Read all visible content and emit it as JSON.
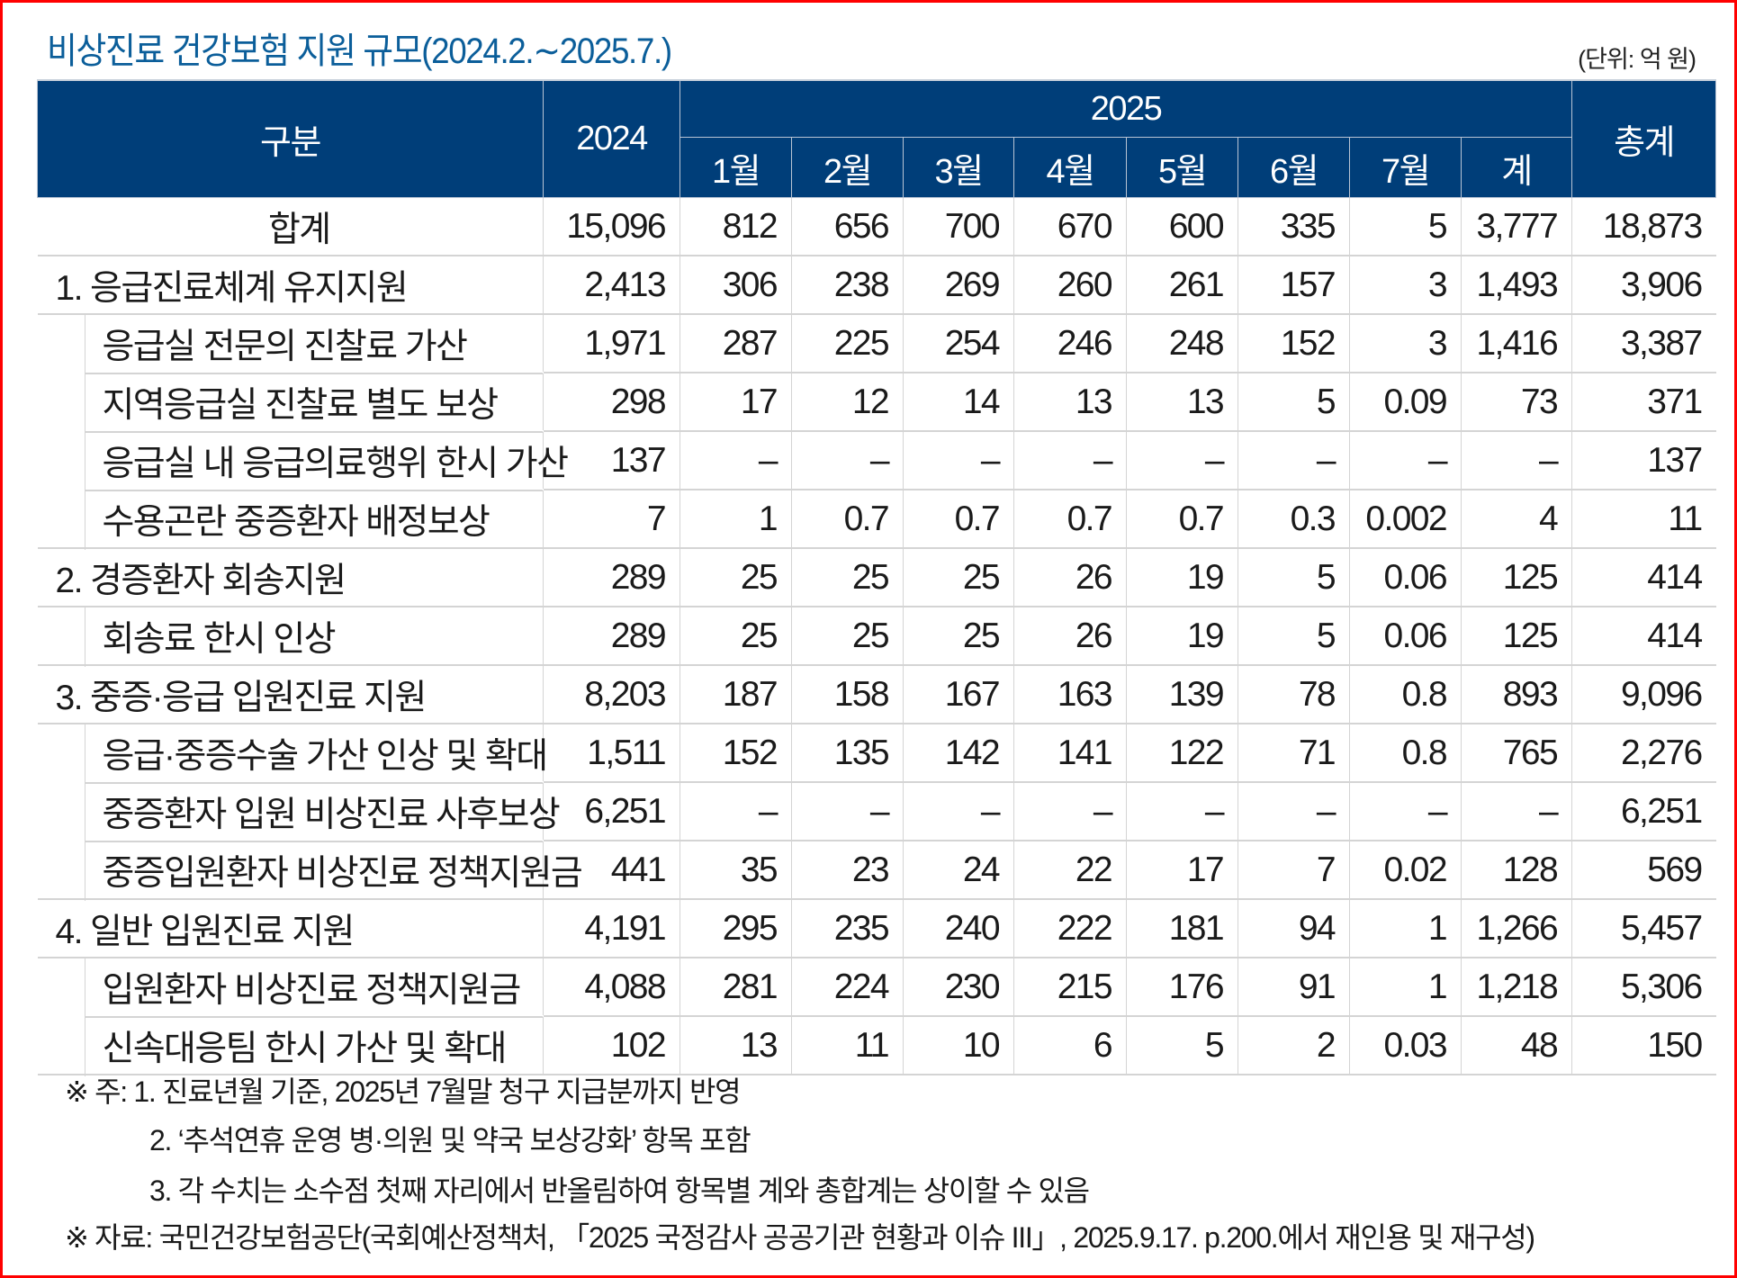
{
  "title": "비상진료 건강보험 지원 규모(2024.2.∼2025.7.)",
  "unit": "(단위: 억 원)",
  "header": {
    "category": "구분",
    "year_2024": "2024",
    "year_2025": "2025",
    "total": "총계",
    "months": [
      "1월",
      "2월",
      "3월",
      "4월",
      "5월",
      "6월",
      "7월"
    ],
    "subtotal": "계"
  },
  "rows": [
    {
      "label": "합계",
      "level": "total",
      "values": [
        "15,096",
        "812",
        "656",
        "700",
        "670",
        "600",
        "335",
        "5",
        "3,777",
        "18,873"
      ]
    },
    {
      "label": "1. 응급진료체계 유지지원",
      "level": "group",
      "values": [
        "2,413",
        "306",
        "238",
        "269",
        "260",
        "261",
        "157",
        "3",
        "1,493",
        "3,906"
      ]
    },
    {
      "label": "응급실 전문의 진찰료 가산",
      "level": "sub",
      "values": [
        "1,971",
        "287",
        "225",
        "254",
        "246",
        "248",
        "152",
        "3",
        "1,416",
        "3,387"
      ]
    },
    {
      "label": "지역응급실 진찰료 별도 보상",
      "level": "sub",
      "values": [
        "298",
        "17",
        "12",
        "14",
        "13",
        "13",
        "5",
        "0.09",
        "73",
        "371"
      ]
    },
    {
      "label": "응급실 내 응급의료행위 한시 가산",
      "level": "sub",
      "values": [
        "137",
        "–",
        "–",
        "–",
        "–",
        "–",
        "–",
        "–",
        "–",
        "137"
      ]
    },
    {
      "label": "수용곤란 중증환자 배정보상",
      "level": "sub",
      "values": [
        "7",
        "1",
        "0.7",
        "0.7",
        "0.7",
        "0.7",
        "0.3",
        "0.002",
        "4",
        "11"
      ]
    },
    {
      "label": "2. 경증환자 회송지원",
      "level": "group",
      "values": [
        "289",
        "25",
        "25",
        "25",
        "26",
        "19",
        "5",
        "0.06",
        "125",
        "414"
      ]
    },
    {
      "label": "회송료 한시 인상",
      "level": "sub",
      "values": [
        "289",
        "25",
        "25",
        "25",
        "26",
        "19",
        "5",
        "0.06",
        "125",
        "414"
      ]
    },
    {
      "label": "3. 중증·응급 입원진료 지원",
      "level": "group",
      "values": [
        "8,203",
        "187",
        "158",
        "167",
        "163",
        "139",
        "78",
        "0.8",
        "893",
        "9,096"
      ]
    },
    {
      "label": "응급·중증수술 가산 인상 및 확대",
      "level": "sub",
      "values": [
        "1,511",
        "152",
        "135",
        "142",
        "141",
        "122",
        "71",
        "0.8",
        "765",
        "2,276"
      ]
    },
    {
      "label": "중증환자 입원 비상진료 사후보상",
      "level": "sub",
      "values": [
        "6,251",
        "–",
        "–",
        "–",
        "–",
        "–",
        "–",
        "–",
        "–",
        "6,251"
      ]
    },
    {
      "label": "중증입원환자 비상진료 정책지원금",
      "level": "sub",
      "values": [
        "441",
        "35",
        "23",
        "24",
        "22",
        "17",
        "7",
        "0.02",
        "128",
        "569"
      ]
    },
    {
      "label": "4. 일반 입원진료 지원",
      "level": "group",
      "values": [
        "4,191",
        "295",
        "235",
        "240",
        "222",
        "181",
        "94",
        "1",
        "1,266",
        "5,457"
      ]
    },
    {
      "label": "입원환자 비상진료 정책지원금",
      "level": "sub",
      "values": [
        "4,088",
        "281",
        "224",
        "230",
        "215",
        "176",
        "91",
        "1",
        "1,218",
        "5,306"
      ]
    },
    {
      "label": "신속대응팀 한시 가산 및 확대",
      "level": "sub",
      "values": [
        "102",
        "13",
        "11",
        "10",
        "6",
        "5",
        "2",
        "0.03",
        "48",
        "150"
      ]
    }
  ],
  "notes": [
    "※ 주: 1. 진료년월 기준, 2025년 7월말 청구 지급분까지 반영",
    "2. ‘추석연휴 운영 병·의원 및 약국 보상강화’ 항목 포함",
    "3. 각 수치는 소수점 첫째 자리에서 반올림하여 항목별 계와 총합계는 상이할 수 있음",
    "※ 자료: 국민건강보험공단(국회예산정책처, 「2025 국정감사 공공기관 현황과 이슈 III」, 2025.9.17. p.200.에서 재인용 및 재구성)"
  ],
  "colors": {
    "header_bg": "#003e79",
    "title": "#0b5e9a",
    "border_frame": "#ff0000",
    "grid": "#d4d4d4"
  }
}
